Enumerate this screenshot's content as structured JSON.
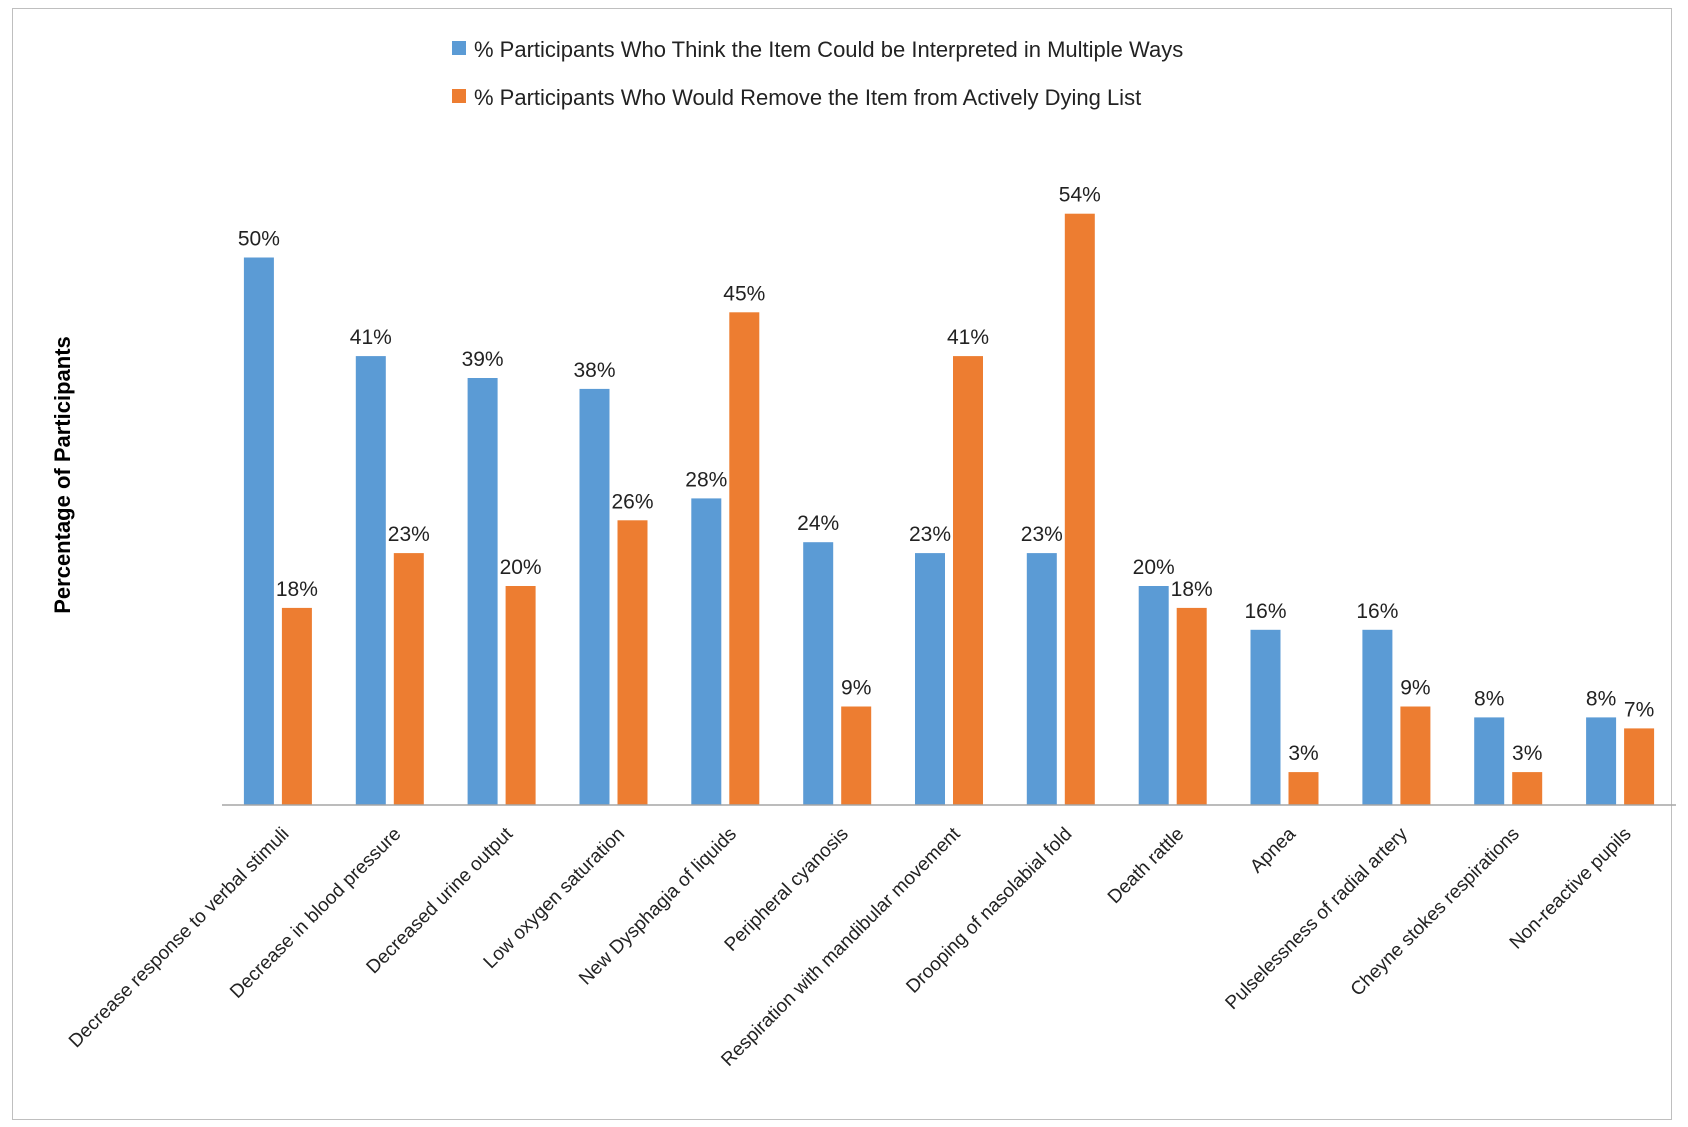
{
  "chart_data": {
    "type": "bar",
    "ylabel": "Percentage of Participants",
    "xlabel": "",
    "ylim": [
      0,
      60
    ],
    "grid": false,
    "legend_position": "top",
    "categories": [
      "Decrease response to verbal stimuli",
      "Decrease in blood pressure",
      "Decreased urine output",
      "Low oxygen saturation",
      "New Dysphagia of liquids",
      "Peripheral cyanosis",
      "Respiration with mandibular movement",
      "Drooping of nasolabial fold",
      "Death rattle",
      "Apnea",
      "Pulselessness of radial artery",
      "Cheyne stokes respirations",
      "Non-reactive pupils"
    ],
    "series": [
      {
        "name": "% Participants Who Think the Item Could be Interpreted in Multiple Ways",
        "color": "#5b9bd5",
        "values": [
          50,
          41,
          39,
          38,
          28,
          24,
          23,
          23,
          20,
          16,
          16,
          8,
          8
        ],
        "labels": [
          "50%",
          "41%",
          "39%",
          "38%",
          "28%",
          "24%",
          "23%",
          "23%",
          "20%",
          "16%",
          "16%",
          "8%",
          "8%"
        ]
      },
      {
        "name": "% Participants Who Would Remove the Item from Actively Dying List",
        "color": "#ed7d31",
        "values": [
          18,
          23,
          20,
          26,
          45,
          9,
          41,
          54,
          18,
          3,
          9,
          3,
          7
        ],
        "labels": [
          "18%",
          "23%",
          "20%",
          "26%",
          "45%",
          "9%",
          "41%",
          "54%",
          "18%",
          "3%",
          "9%",
          "3%",
          "7%"
        ]
      }
    ]
  }
}
